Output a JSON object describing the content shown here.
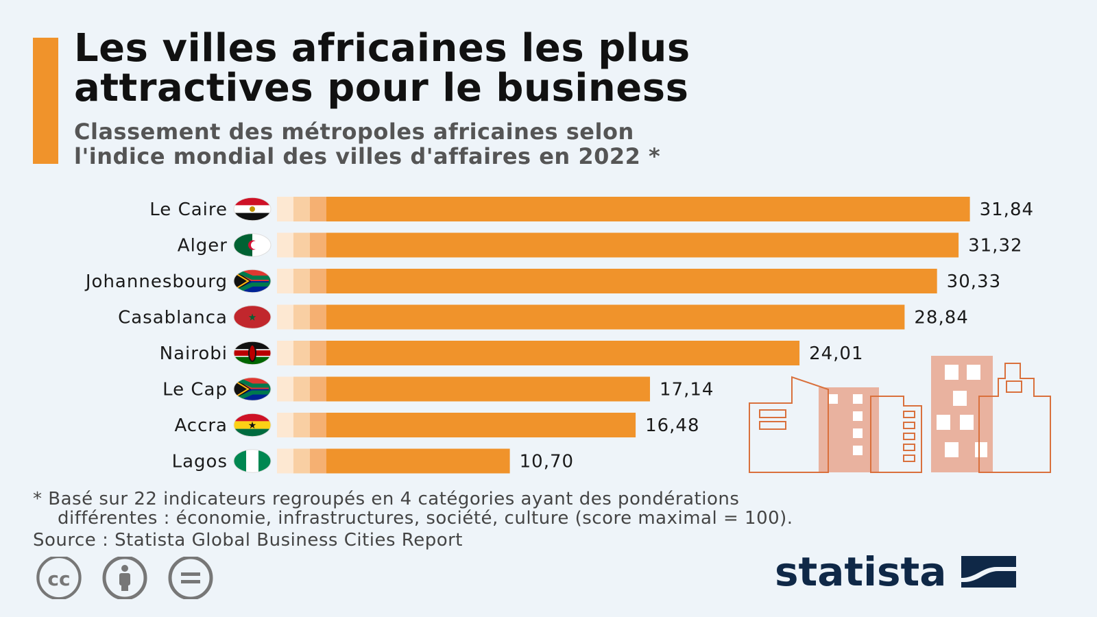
{
  "title": {
    "line1": "Les villes africaines les plus",
    "line2": "attractives pour le business"
  },
  "subtitle": {
    "line1": "Classement des métropoles africaines selon",
    "line2": "l'indice mondial des villes d'affaires en 2022 *"
  },
  "chart_data": {
    "type": "bar",
    "orientation": "horizontal",
    "title": "Les villes africaines les plus attractives pour le business",
    "subtitle": "Classement des métropoles africaines selon l'indice mondial des villes d'affaires en 2022 *",
    "categories": [
      "Le Caire",
      "Alger",
      "Johannesbourg",
      "Casablanca",
      "Nairobi",
      "Le Cap",
      "Accra",
      "Lagos"
    ],
    "values": [
      31.84,
      31.32,
      30.33,
      28.84,
      24.01,
      17.14,
      16.48,
      10.7
    ],
    "value_labels": [
      "31,84",
      "31,32",
      "30,33",
      "28,84",
      "24,01",
      "17,14",
      "16,48",
      "10,70"
    ],
    "flags": [
      "egypt",
      "algeria",
      "south-africa",
      "morocco",
      "kenya",
      "south-africa",
      "ghana",
      "nigeria"
    ],
    "xlim": [
      0,
      34
    ],
    "xlabel": "",
    "ylabel": "",
    "grid": false,
    "bar_color": "#f0932b"
  },
  "footnote": {
    "line1": "* Basé sur 22 indicateurs regroupés en 4 catégories ayant des pondérations",
    "line2": "différentes : économie, infrastructures, société, culture (score maximal = 100)."
  },
  "source": "Source : Statista Global Business Cities Report",
  "license_icons": [
    "creative-commons-icon",
    "attribution-icon",
    "no-derivatives-icon"
  ],
  "brand": {
    "name": "statista"
  },
  "colors": {
    "accent": "#f0932b",
    "brand": "#0f2847",
    "background": "#eef4f9"
  }
}
